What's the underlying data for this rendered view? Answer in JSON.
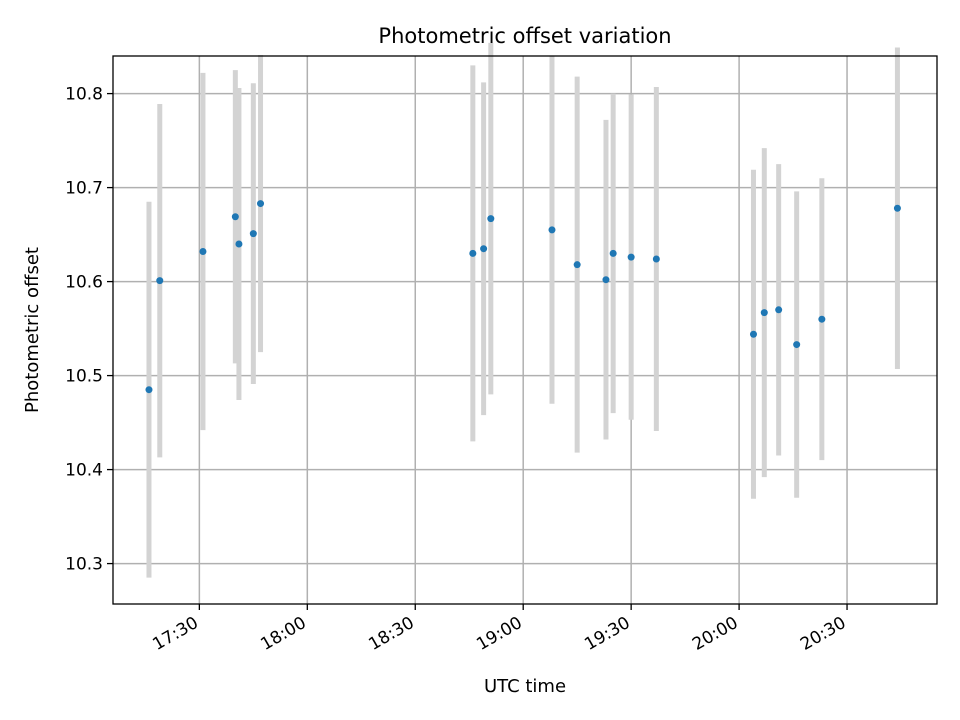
{
  "chart_data": {
    "type": "scatter",
    "title": "Photometric offset variation",
    "xlabel": "UTC time",
    "ylabel": "Photometric offset",
    "xlim": [
      "17:06",
      "20:55"
    ],
    "ylim": [
      10.257,
      10.84
    ],
    "x_ticks": [
      "17:30",
      "18:00",
      "18:30",
      "19:00",
      "19:30",
      "20:00",
      "20:30"
    ],
    "y_ticks": [
      "10.3",
      "10.4",
      "10.5",
      "10.6",
      "10.7",
      "10.8"
    ],
    "grid": true,
    "colors": {
      "points": "#1f77b4",
      "errorbars": "#d3d3d3"
    },
    "series": [
      {
        "points": [
          {
            "t": "17:16",
            "y": 10.485,
            "err": 0.2
          },
          {
            "t": "17:19",
            "y": 10.601,
            "err": 0.188
          },
          {
            "t": "17:31",
            "y": 10.632,
            "err": 0.19
          },
          {
            "t": "17:40",
            "y": 10.669,
            "err": 0.156
          },
          {
            "t": "17:41",
            "y": 10.64,
            "err": 0.166
          },
          {
            "t": "17:45",
            "y": 10.651,
            "err": 0.16
          },
          {
            "t": "17:47",
            "y": 10.683,
            "err": 0.158
          },
          {
            "t": "18:46",
            "y": 10.63,
            "err": 0.2
          },
          {
            "t": "18:49",
            "y": 10.635,
            "err": 0.177
          },
          {
            "t": "18:51",
            "y": 10.667,
            "err": 0.187
          },
          {
            "t": "19:08",
            "y": 10.655,
            "err": 0.185
          },
          {
            "t": "19:15",
            "y": 10.618,
            "err": 0.2
          },
          {
            "t": "19:23",
            "y": 10.602,
            "err": 0.17
          },
          {
            "t": "19:25",
            "y": 10.63,
            "err": 0.17
          },
          {
            "t": "19:30",
            "y": 10.626,
            "err": 0.173
          },
          {
            "t": "19:37",
            "y": 10.624,
            "err": 0.183
          },
          {
            "t": "20:04",
            "y": 10.544,
            "err": 0.175
          },
          {
            "t": "20:07",
            "y": 10.567,
            "err": 0.175
          },
          {
            "t": "20:11",
            "y": 10.57,
            "err": 0.155
          },
          {
            "t": "20:16",
            "y": 10.533,
            "err": 0.163
          },
          {
            "t": "20:23",
            "y": 10.56,
            "err": 0.15
          },
          {
            "t": "20:44",
            "y": 10.678,
            "err": 0.171
          }
        ]
      }
    ]
  }
}
